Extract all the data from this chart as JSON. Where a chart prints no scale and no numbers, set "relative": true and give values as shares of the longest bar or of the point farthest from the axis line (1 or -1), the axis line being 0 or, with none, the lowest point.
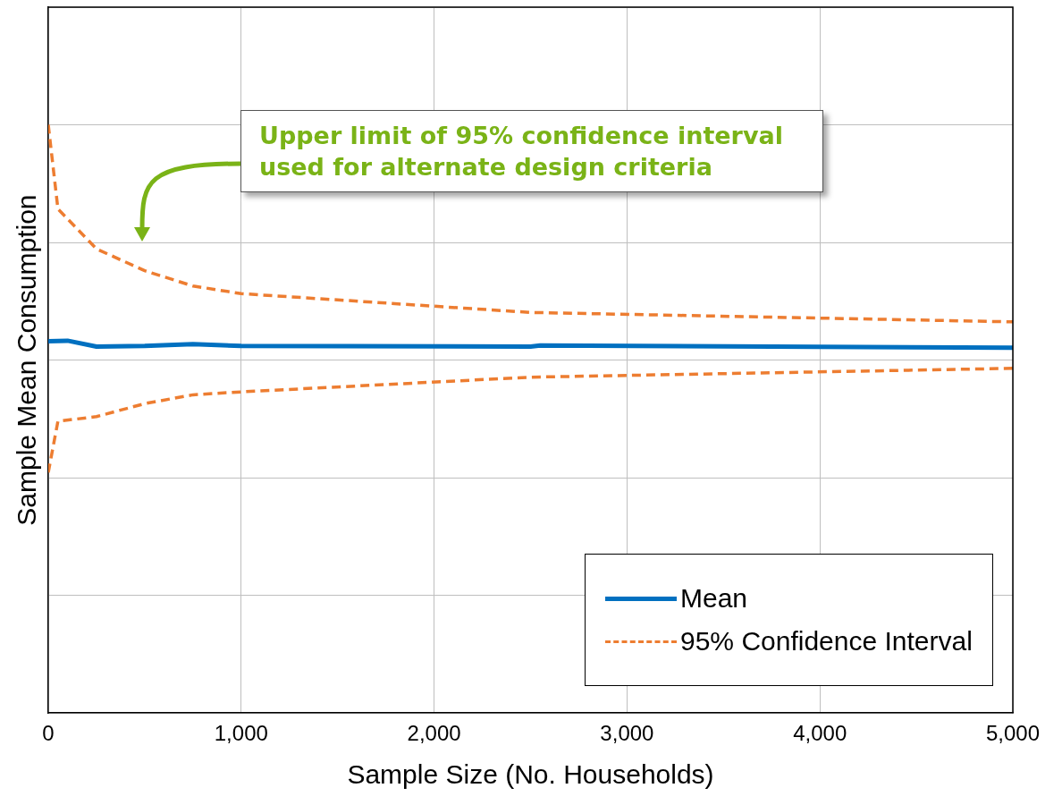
{
  "chart_data": {
    "type": "line",
    "relative": true,
    "xlabel": "Sample Size (No. Households)",
    "ylabel": "Sample Mean Consumption",
    "xlim": [
      0,
      5000
    ],
    "xticks": [
      0,
      {
        "value": 1000,
        "label": "1,000"
      },
      {
        "value": 2000,
        "label": "2,000"
      },
      {
        "value": 3000,
        "label": "3,000"
      },
      {
        "value": 4000,
        "label": "4,000"
      },
      {
        "value": 5000,
        "label": "5,000"
      }
    ],
    "grid": true,
    "legend": "bottom right",
    "marker": "none",
    "series": [
      {
        "name": "Mean",
        "color": "#0070c0",
        "line_style": "solid",
        "x": [
          0,
          100,
          250,
          500,
          750,
          1000,
          2500,
          2550,
          5000
        ],
        "values": [
          0.632,
          0.633,
          0.623,
          0.624,
          0.627,
          0.624,
          0.623,
          0.625,
          0.621
        ]
      },
      {
        "name": "95% Confidence Interval",
        "color": "#ed7d31",
        "line_style": "dashed",
        "x": [
          0,
          50,
          250,
          500,
          750,
          1000,
          2500,
          5000
        ],
        "values": [
          1,
          0.857,
          0.789,
          0.752,
          0.726,
          0.713,
          0.681,
          0.665
        ]
      },
      {
        "color": "#ed7d31",
        "line_style": "dashed",
        "x": [
          0,
          50,
          250,
          500,
          750,
          1000,
          2500,
          5000
        ],
        "values": [
          0.409,
          0.496,
          0.504,
          0.526,
          0.541,
          0.546,
          0.571,
          0.586
        ]
      }
    ],
    "annotations": [
      "Upper limit of 95% confidence interval used for alternate design criteria"
    ]
  }
}
